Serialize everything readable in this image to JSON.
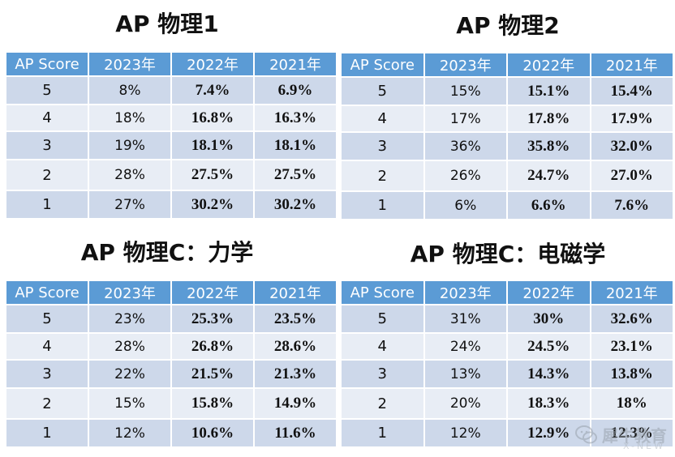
{
  "tables": [
    {
      "title": "AP 物理1",
      "headers": [
        "AP Score",
        "2023年",
        "2022年",
        "2021年"
      ],
      "rows": [
        [
          "5",
          "8%",
          "7.4%",
          "6.9%"
        ],
        [
          "4",
          "18%",
          "16.8%",
          "16.3%"
        ],
        [
          "3",
          "19%",
          "18.1%",
          "18.1%"
        ],
        [
          "2",
          "28%",
          "27.5%",
          "27.5%"
        ],
        [
          "1",
          "27%",
          "30.2%",
          "30.2%"
        ]
      ]
    },
    {
      "title": "AP 物理2",
      "headers": [
        "AP Score",
        "2023年",
        "2022年",
        "2021年"
      ],
      "rows": [
        [
          "5",
          "15%",
          "15.1%",
          "15.4%"
        ],
        [
          "4",
          "17%",
          "17.8%",
          "17.9%"
        ],
        [
          "3",
          "36%",
          "35.8%",
          "32.0%"
        ],
        [
          "2",
          "26%",
          "24.7%",
          "27.0%"
        ],
        [
          "1",
          "6%",
          "6.6%",
          "7.6%"
        ]
      ]
    },
    {
      "title": "AP 物理C：力学",
      "headers": [
        "AP Score",
        "2023年",
        "2022年",
        "2021年"
      ],
      "rows": [
        [
          "5",
          "23%",
          "25.3%",
          "23.5%"
        ],
        [
          "4",
          "28%",
          "26.8%",
          "28.6%"
        ],
        [
          "3",
          "22%",
          "21.5%",
          "21.3%"
        ],
        [
          "2",
          "15%",
          "15.8%",
          "14.9%"
        ],
        [
          "1",
          "12%",
          "10.6%",
          "11.6%"
        ]
      ]
    },
    {
      "title": "AP 物理C：电磁学",
      "headers": [
        "AP Score",
        "2023年",
        "2022年",
        "2021年"
      ],
      "rows": [
        [
          "5",
          "31%",
          "30%",
          "32.6%"
        ],
        [
          "4",
          "24%",
          "24.5%",
          "23.1%"
        ],
        [
          "3",
          "13%",
          "14.3%",
          "13.8%"
        ],
        [
          "2",
          "20%",
          "18.3%",
          "18%"
        ],
        [
          "1",
          "12%",
          "12.9%",
          "12.3%"
        ]
      ]
    }
  ],
  "watermark": {
    "text": "犀牛教育",
    "sub": "X-NEW"
  },
  "colors": {
    "header_bg": "#5b9bd5",
    "row_odd": "#cdd8ea",
    "row_even": "#e8edf5"
  }
}
